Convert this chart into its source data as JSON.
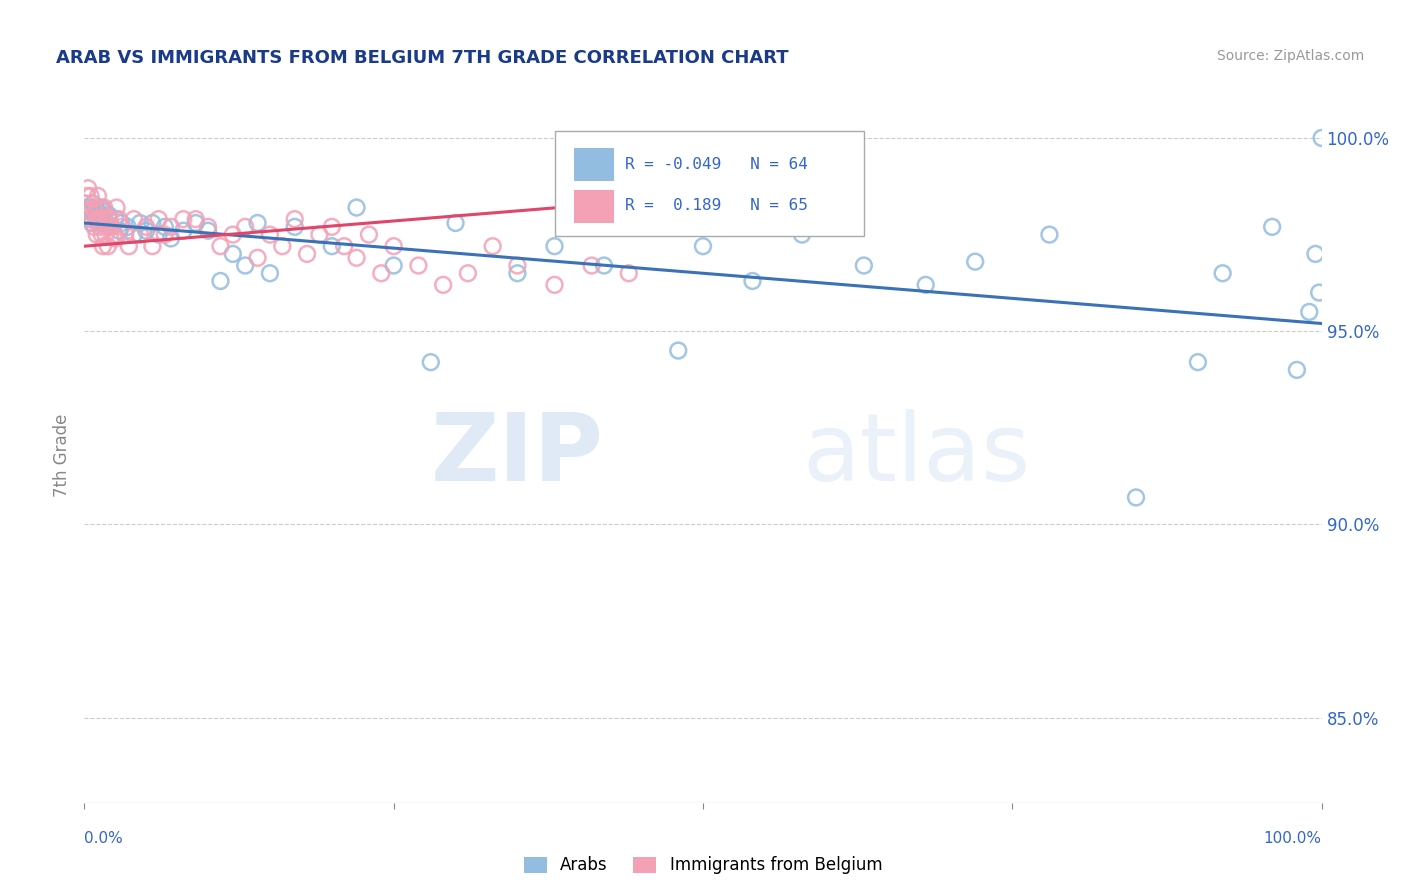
{
  "title": "ARAB VS IMMIGRANTS FROM BELGIUM 7TH GRADE CORRELATION CHART",
  "source": "Source: ZipAtlas.com",
  "ylabel": "7th Grade",
  "watermark_zip": "ZIP",
  "watermark_atlas": "atlas",
  "legend": {
    "arab_R": "-0.049",
    "arab_N": "64",
    "belg_R": "0.189",
    "belg_N": "65"
  },
  "arab_color": "#92bce0",
  "arab_edge_color": "#92bce0",
  "arab_line_color": "#3a72b8",
  "belg_color": "#f4a0b5",
  "belg_edge_color": "#f4a0b5",
  "belg_line_color": "#e0456a",
  "arab_scatter_x": [
    0.002,
    0.003,
    0.004,
    0.005,
    0.006,
    0.007,
    0.008,
    0.009,
    0.01,
    0.011,
    0.012,
    0.013,
    0.014,
    0.015,
    0.016,
    0.018,
    0.02,
    0.022,
    0.025,
    0.028,
    0.03,
    0.035,
    0.04,
    0.045,
    0.05,
    0.055,
    0.06,
    0.065,
    0.07,
    0.08,
    0.09,
    0.1,
    0.11,
    0.12,
    0.13,
    0.14,
    0.15,
    0.17,
    0.2,
    0.22,
    0.25,
    0.28,
    0.3,
    0.35,
    0.38,
    0.42,
    0.45,
    0.48,
    0.5,
    0.54,
    0.58,
    0.63,
    0.68,
    0.72,
    0.78,
    0.85,
    0.9,
    0.92,
    0.96,
    0.98,
    0.99,
    0.995,
    0.998,
    1.0
  ],
  "arab_scatter_y": [
    0.98,
    0.982,
    0.979,
    0.981,
    0.978,
    0.983,
    0.98,
    0.982,
    0.979,
    0.981,
    0.978,
    0.98,
    0.982,
    0.979,
    0.981,
    0.978,
    0.98,
    0.977,
    0.979,
    0.976,
    0.978,
    0.977,
    0.975,
    0.978,
    0.976,
    0.978,
    0.975,
    0.977,
    0.974,
    0.976,
    0.978,
    0.976,
    0.963,
    0.97,
    0.967,
    0.978,
    0.965,
    0.977,
    0.972,
    0.982,
    0.967,
    0.942,
    0.978,
    0.965,
    0.972,
    0.967,
    0.977,
    0.945,
    0.972,
    0.963,
    0.975,
    0.967,
    0.962,
    0.968,
    0.975,
    0.907,
    0.942,
    0.965,
    0.977,
    0.94,
    0.955,
    0.97,
    0.96,
    1.0
  ],
  "belg_scatter_x": [
    0.001,
    0.002,
    0.003,
    0.004,
    0.005,
    0.006,
    0.007,
    0.008,
    0.009,
    0.01,
    0.011,
    0.012,
    0.013,
    0.014,
    0.015,
    0.016,
    0.017,
    0.018,
    0.019,
    0.02,
    0.022,
    0.024,
    0.026,
    0.028,
    0.03,
    0.033,
    0.036,
    0.04,
    0.045,
    0.05,
    0.055,
    0.06,
    0.065,
    0.07,
    0.08,
    0.09,
    0.1,
    0.11,
    0.12,
    0.13,
    0.14,
    0.15,
    0.16,
    0.17,
    0.18,
    0.19,
    0.2,
    0.21,
    0.22,
    0.23,
    0.24,
    0.25,
    0.27,
    0.29,
    0.31,
    0.33,
    0.35,
    0.38,
    0.41,
    0.44,
    0.01,
    0.012,
    0.015,
    0.02,
    0.025
  ],
  "belg_scatter_y": [
    0.983,
    0.985,
    0.987,
    0.981,
    0.985,
    0.979,
    0.982,
    0.977,
    0.981,
    0.979,
    0.985,
    0.982,
    0.977,
    0.975,
    0.979,
    0.982,
    0.975,
    0.977,
    0.972,
    0.979,
    0.977,
    0.975,
    0.982,
    0.979,
    0.977,
    0.975,
    0.972,
    0.979,
    0.975,
    0.977,
    0.972,
    0.979,
    0.975,
    0.977,
    0.979,
    0.979,
    0.977,
    0.972,
    0.975,
    0.977,
    0.969,
    0.975,
    0.972,
    0.979,
    0.97,
    0.975,
    0.977,
    0.972,
    0.969,
    0.975,
    0.965,
    0.972,
    0.967,
    0.962,
    0.965,
    0.972,
    0.967,
    0.962,
    0.967,
    0.965,
    0.975,
    0.979,
    0.972,
    0.977,
    0.974
  ],
  "arab_line_x": [
    0.0,
    1.0
  ],
  "arab_line_y": [
    0.978,
    0.952
  ],
  "belg_line_x": [
    0.0,
    0.46
  ],
  "belg_line_y": [
    0.972,
    0.984
  ],
  "xlim": [
    0.0,
    1.0
  ],
  "ylim": [
    0.828,
    1.008
  ],
  "yticks": [
    0.85,
    0.9,
    0.95,
    1.0
  ],
  "ytick_labels_right": [
    "85.0%",
    "90.0%",
    "95.0%",
    "100.0%"
  ],
  "grid_color": "#cccccc",
  "bg_color": "#ffffff",
  "title_color": "#1a3a8a",
  "source_color": "#999999",
  "axis_color": "#888888",
  "tick_label_color": "#3366cc"
}
